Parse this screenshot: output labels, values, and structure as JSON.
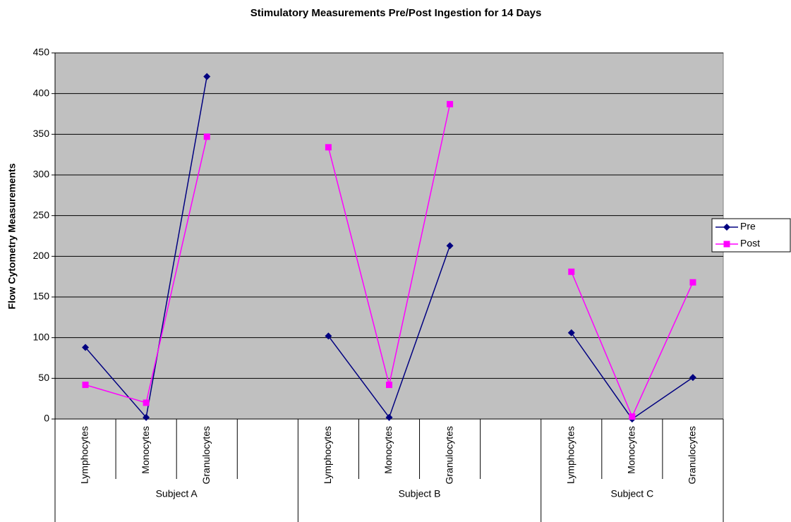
{
  "chart_data": {
    "type": "line",
    "title": "Stimulatory Measurements Pre/Post Ingestion for 14 Days",
    "y_label": "Flow Cytometry Measurements",
    "categories": [
      "Lymphocytes",
      "Monocytes",
      "Granulocytes",
      null,
      "Lymphocytes",
      "Monocytes",
      "Granulocytes",
      null,
      "Lymphocytes",
      "Monocytes",
      "Granulocytes"
    ],
    "groups": [
      "Subject A",
      "Subject B",
      "Subject C"
    ],
    "series": [
      {
        "name": "Pre",
        "color": "#000080",
        "marker": "diamond",
        "values": [
          88,
          2,
          421,
          null,
          102,
          2,
          213,
          null,
          106,
          0,
          51
        ]
      },
      {
        "name": "Post",
        "color": "#ff00ff",
        "marker": "square",
        "values": [
          42,
          20,
          347,
          null,
          334,
          42,
          387,
          null,
          181,
          3,
          168
        ]
      }
    ],
    "ylim": [
      0,
      450
    ],
    "yticks": [
      0,
      50,
      100,
      150,
      200,
      250,
      300,
      350,
      400,
      450
    ],
    "grid": true,
    "legend": "right"
  }
}
